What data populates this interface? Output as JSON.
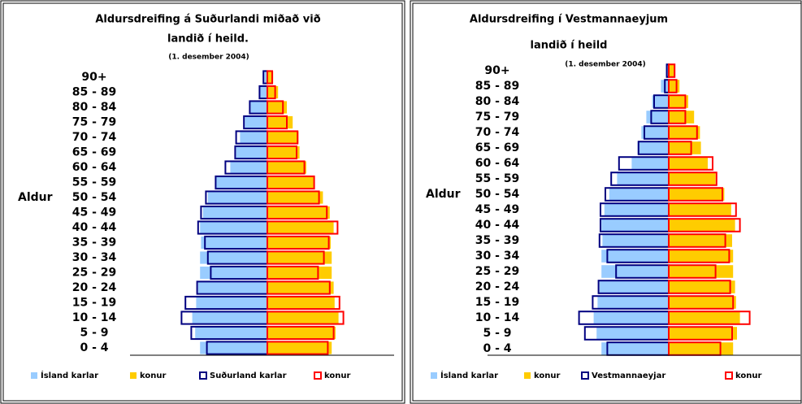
{
  "chart_data": [
    {
      "type": "pyramid",
      "title": [
        "Aldursdreifing á Suðurlandi miðað við",
        "landið í heild."
      ],
      "subtitle": "(1. desember 2004)",
      "ylabel": "Aldur",
      "categories": [
        "0 - 4",
        "5 - 9",
        "10 - 14",
        "15 - 19",
        "20 - 24",
        "25 - 29",
        "30 - 34",
        "35 - 39",
        "40 - 44",
        "45 - 49",
        "50 - 54",
        "55 - 59",
        "60 - 64",
        "65 - 69",
        "70 - 74",
        "75 - 79",
        "80 - 84",
        "85 - 89",
        "90+"
      ],
      "xlim": [
        -10,
        10
      ],
      "series": [
        {
          "name": "Ísland karlar",
          "color": "#99ccff",
          "style": "filled",
          "values": [
            -6.9,
            -7.4,
            -7.7,
            -7.3,
            -7.1,
            -6.9,
            -6.9,
            -6.8,
            -6.9,
            -6.6,
            -6.1,
            -5.3,
            -3.8,
            -3.2,
            -2.8,
            -2.3,
            -1.7,
            -0.8,
            -0.3
          ]
        },
        {
          "name": "konur",
          "color": "#ffcc00",
          "style": "filled",
          "values": [
            6.6,
            7.0,
            7.3,
            6.9,
            6.8,
            6.6,
            6.6,
            6.5,
            6.8,
            6.4,
            5.7,
            4.8,
            4.0,
            3.3,
            3.2,
            2.6,
            2.0,
            1.1,
            0.6
          ]
        },
        {
          "name": "Suðurland karlar",
          "color": "#000080",
          "style": "outline",
          "values": [
            -6.2,
            -7.8,
            -8.8,
            -8.4,
            -7.2,
            -5.8,
            -6.1,
            -6.4,
            -7.1,
            -6.8,
            -6.3,
            -5.3,
            -4.3,
            -3.3,
            -3.2,
            -2.4,
            -1.8,
            -0.8,
            -0.4
          ]
        },
        {
          "name": "konur",
          "color": "#ff0000",
          "style": "outline",
          "values": [
            6.2,
            6.8,
            7.8,
            7.4,
            6.4,
            5.2,
            5.8,
            6.3,
            7.2,
            6.1,
            5.3,
            4.8,
            3.8,
            3.0,
            3.1,
            2.0,
            1.6,
            0.8,
            0.5
          ]
        }
      ]
    },
    {
      "type": "pyramid",
      "title": [
        "Aldursdreifing í Vestmannaeyjum",
        "landið í heild"
      ],
      "subtitle": "(1. desember  2004)",
      "ylabel": "Aldur",
      "categories": [
        "0 - 4",
        "5 - 9",
        "10 - 14",
        "15 - 19",
        "20 - 24",
        "25 - 29",
        "30 - 34",
        "35 - 39",
        "40 - 44",
        "45 - 49",
        "50 - 54",
        "55 - 59",
        "60 - 64",
        "65 - 69",
        "70 - 74",
        "75 - 79",
        "80 - 84",
        "85 - 89",
        "90+"
      ],
      "xlim": [
        -10,
        10
      ],
      "series": [
        {
          "name": "Ísland karlar",
          "color": "#99ccff",
          "style": "filled",
          "values": [
            -6.9,
            -7.4,
            -7.7,
            -7.3,
            -7.1,
            -6.9,
            -6.9,
            -6.8,
            -6.9,
            -6.6,
            -6.1,
            -5.3,
            -3.8,
            -3.2,
            -2.8,
            -2.3,
            -1.7,
            -0.8,
            -0.3
          ]
        },
        {
          "name": "konur",
          "color": "#ffcc00",
          "style": "filled",
          "values": [
            6.6,
            7.0,
            7.3,
            6.9,
            6.8,
            6.6,
            6.6,
            6.5,
            6.8,
            6.4,
            5.7,
            4.8,
            4.0,
            3.3,
            3.2,
            2.6,
            2.0,
            1.1,
            0.6
          ]
        },
        {
          "name": "Vestmannaeyjar",
          "color": "#000080",
          "style": "outline",
          "values": [
            -6.3,
            -8.6,
            -9.2,
            -7.8,
            -7.2,
            -5.4,
            -6.3,
            -7.1,
            -7.0,
            -7.0,
            -6.5,
            -5.9,
            -5.1,
            -3.1,
            -2.5,
            -1.8,
            -1.5,
            -0.4,
            -0.2
          ]
        },
        {
          "name": "konur",
          "color": "#ff0000",
          "style": "outline",
          "values": [
            5.3,
            6.5,
            8.3,
            6.6,
            6.3,
            4.8,
            6.2,
            5.8,
            7.3,
            6.9,
            5.5,
            4.9,
            4.5,
            2.3,
            2.9,
            1.7,
            1.7,
            0.8,
            0.6
          ]
        }
      ]
    }
  ]
}
